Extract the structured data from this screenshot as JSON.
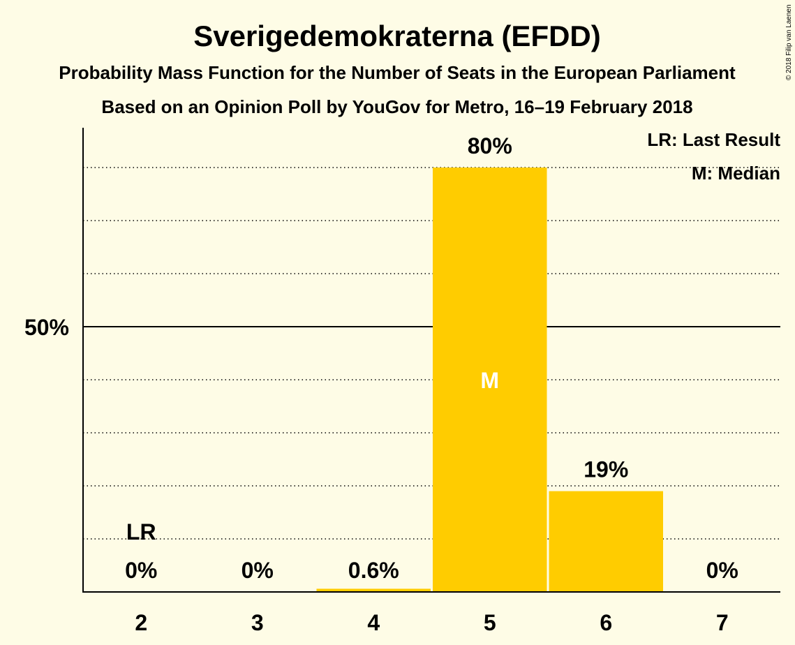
{
  "chart_data": {
    "type": "bar",
    "title": "Sverigedemokraterna (EFDD)",
    "subtitle": "Probability Mass Function for the Number of Seats in the European Parliament",
    "subtitle2": "Based on an Opinion Poll by YouGov for Metro, 16–19 February 2018",
    "copyright": "© 2018 Filip van Laenen",
    "categories": [
      "2",
      "3",
      "4",
      "5",
      "6",
      "7"
    ],
    "values": [
      0,
      0,
      0.6,
      80,
      19,
      0
    ],
    "value_labels": [
      "0%",
      "0%",
      "0.6%",
      "80%",
      "19%",
      "0%"
    ],
    "ylim": [
      0,
      87.5
    ],
    "ytick_value": 50,
    "ytick_label": "50%",
    "gridlines": [
      10,
      20,
      30,
      40,
      60,
      70,
      80
    ],
    "last_result_index": 0,
    "last_result_marker": "LR",
    "median_index": 3,
    "median_marker": "M",
    "legend": [
      "LR: Last Result",
      "M: Median"
    ],
    "bar_color": "#FFCC00",
    "median_text_color": "#FFFFFF"
  }
}
